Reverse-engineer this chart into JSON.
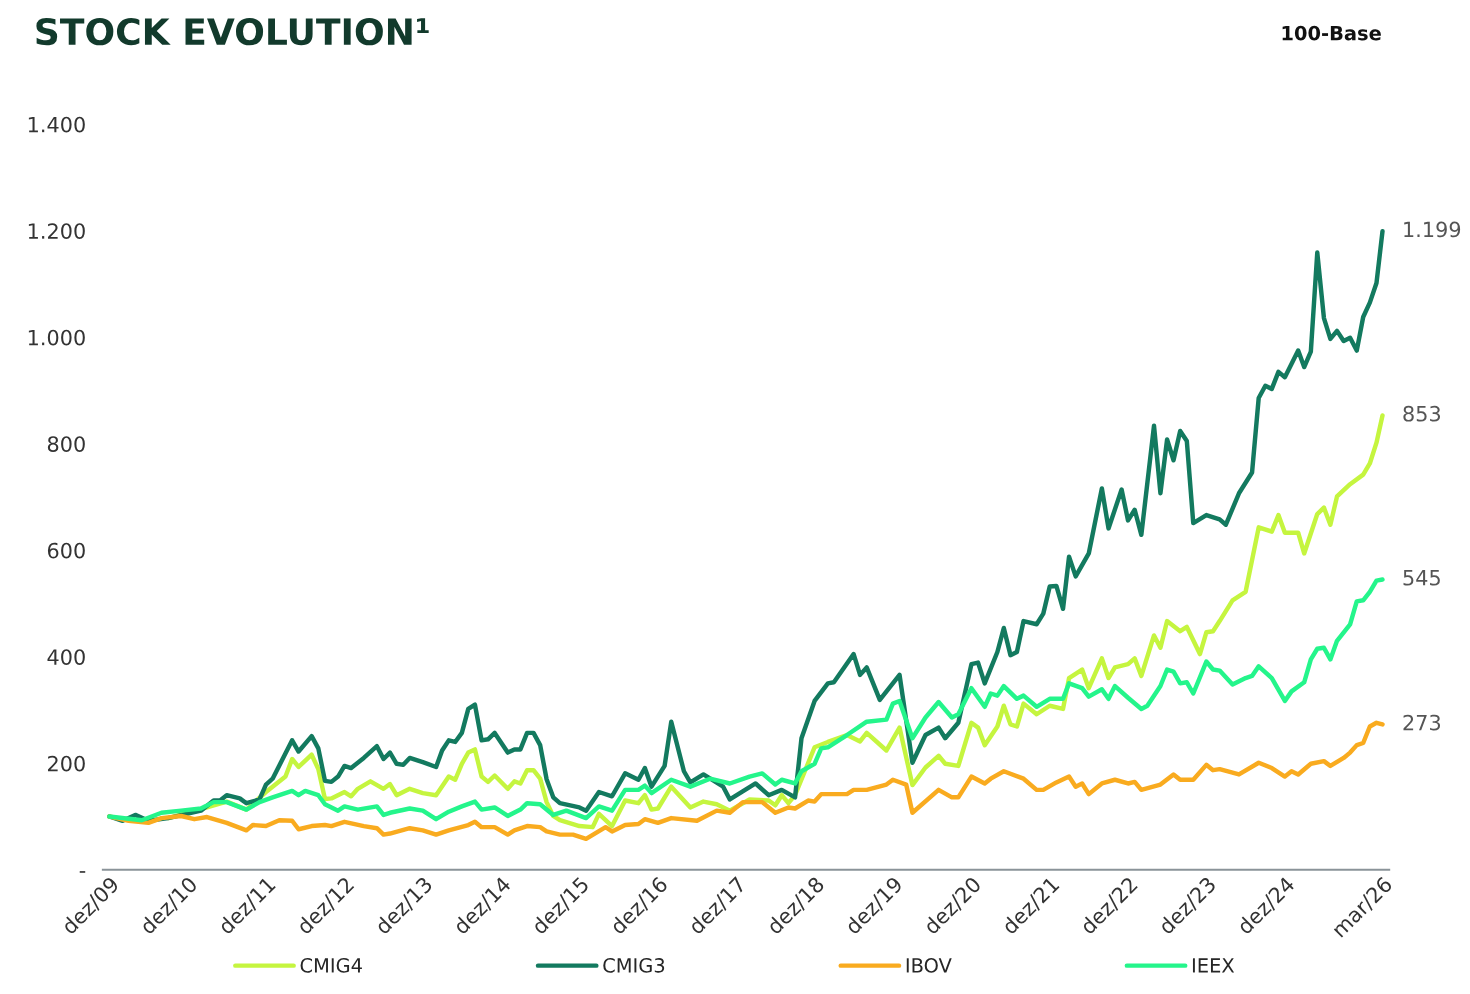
{
  "chart_data": {
    "type": "line",
    "title": "STOCK EVOLUTION¹",
    "subtitle": "100-Base",
    "xlim": [
      "2009-11",
      "2026-04"
    ],
    "xticks": [
      {
        "value": "2009-12",
        "label": "dez/09"
      },
      {
        "value": "2010-12",
        "label": "dez/10"
      },
      {
        "value": "2011-12",
        "label": "dez/11"
      },
      {
        "value": "2012-12",
        "label": "dez/12"
      },
      {
        "value": "2013-12",
        "label": "dez/13"
      },
      {
        "value": "2014-12",
        "label": "dez/14"
      },
      {
        "value": "2015-12",
        "label": "dez/15"
      },
      {
        "value": "2016-12",
        "label": "dez/16"
      },
      {
        "value": "2017-12",
        "label": "dez/17"
      },
      {
        "value": "2018-12",
        "label": "dez/18"
      },
      {
        "value": "2019-12",
        "label": "dez/19"
      },
      {
        "value": "2020-12",
        "label": "dez/20"
      },
      {
        "value": "2021-12",
        "label": "dez/21"
      },
      {
        "value": "2022-12",
        "label": "dez/22"
      },
      {
        "value": "2023-12",
        "label": "dez/23"
      },
      {
        "value": "2024-12",
        "label": "dez/24"
      },
      {
        "value": "2026-03",
        "label": "mar/26"
      }
    ],
    "ylim": [
      0,
      1400
    ],
    "yticks": [
      {
        "value": 0,
        "label": "-"
      },
      200,
      400,
      600,
      800,
      {
        "value": 1000,
        "label": "1.000"
      },
      {
        "value": 1200,
        "label": "1.200"
      },
      {
        "value": 1400,
        "label": "1.400"
      }
    ],
    "grid": false,
    "legend": "bottom",
    "marker": "none",
    "line_style": "solid",
    "annotations": [
      {
        "text": "1.199",
        "x": "2026-03",
        "y": 1199
      },
      {
        "text": "853",
        "x": "2026-03",
        "y": 853
      },
      {
        "text": "545",
        "x": "2026-03",
        "y": 545
      },
      {
        "text": "273",
        "x": "2026-03",
        "y": 273
      }
    ],
    "series": [
      {
        "name": "CMIG4",
        "color": "#c5f53f",
        "x": [
          "2010-09",
          "2011-03",
          "2011-06",
          "2011-09",
          "2011-12",
          "2012-03",
          "2012-04",
          "2012-05",
          "2012-07",
          "2012-08",
          "2012-09",
          "2012-10",
          "2012-12",
          "2013-01",
          "2013-02",
          "2013-04",
          "2013-06",
          "2013-07",
          "2013-08",
          "2013-10",
          "2013-12",
          "2014-02",
          "2014-04",
          "2014-05",
          "2014-06",
          "2014-07",
          "2014-08",
          "2014-09",
          "2014-10",
          "2014-11",
          "2015-01",
          "2015-02",
          "2015-03",
          "2015-04",
          "2015-05",
          "2015-06",
          "2015-07",
          "2015-08",
          "2015-09",
          "2015-12",
          "2016-02",
          "2016-03",
          "2016-05",
          "2016-07",
          "2016-09",
          "2016-10",
          "2016-11",
          "2016-12",
          "2017-02",
          "2017-05",
          "2017-07",
          "2017-09",
          "2017-11",
          "2018-02",
          "2018-05",
          "2018-06",
          "2018-07",
          "2018-08",
          "2018-09",
          "2018-12",
          "2019-02",
          "2019-05",
          "2019-07",
          "2019-08",
          "2019-11",
          "2020-01",
          "2020-03",
          "2020-05",
          "2020-07",
          "2020-08",
          "2020-10",
          "2020-12",
          "2021-01",
          "2021-02",
          "2021-04",
          "2021-05",
          "2021-06",
          "2021-07",
          "2021-08",
          "2021-10",
          "2021-12",
          "2022-02",
          "2022-03",
          "2022-05",
          "2022-06",
          "2022-08",
          "2022-09",
          "2022-10",
          "2022-12",
          "2023-01",
          "2023-02",
          "2023-04",
          "2023-05",
          "2023-06",
          "2023-08",
          "2023-09",
          "2023-11",
          "2023-12",
          "2024-01",
          "2024-02",
          "2024-04",
          "2024-06",
          "2024-08",
          "2024-10",
          "2024-11",
          "2024-12",
          "2025-02",
          "2025-03",
          "2025-05",
          "2025-06",
          "2025-07",
          "2025-08",
          "2025-10",
          "2025-12",
          "2026-01",
          "2026-02",
          "2026-03"
        ],
        "values": [
          97,
          117,
          128,
          113,
          146,
          175,
          208,
          193,
          216,
          189,
          133,
          134,
          146,
          138,
          152,
          166,
          152,
          161,
          140,
          152,
          144,
          140,
          175,
          169,
          199,
          220,
          226,
          175,
          165,
          177,
          152,
          166,
          162,
          187,
          187,
          171,
          127,
          101,
          93,
          82,
          80,
          105,
          82,
          130,
          125,
          140,
          113,
          115,
          156,
          117,
          128,
          123,
          111,
          132,
          130,
          121,
          140,
          125,
          140,
          230,
          240,
          253,
          241,
          257,
          224,
          267,
          159,
          192,
          214,
          199,
          195,
          276,
          267,
          234,
          269,
          308,
          273,
          269,
          312,
          292,
          308,
          302,
          360,
          376,
          341,
          397,
          360,
          380,
          386,
          397,
          364,
          440,
          417,
          467,
          448,
          456,
          405,
          446,
          448,
          467,
          506,
          522,
          643,
          635,
          666,
          633,
          633,
          594,
          668,
          680,
          648,
          701,
          724,
          742,
          763,
          802,
          853
        ]
      },
      {
        "name": "CMIG3",
        "color": "#137a5f",
        "x": [
          "2009-12",
          "2010-02",
          "2010-04",
          "2010-06",
          "2010-09",
          "2011-02",
          "2011-04",
          "2011-05",
          "2011-06",
          "2011-08",
          "2011-09",
          "2011-11",
          "2011-12",
          "2012-01",
          "2012-04",
          "2012-05",
          "2012-07",
          "2012-08",
          "2012-09",
          "2012-10",
          "2012-11",
          "2012-12",
          "2013-01",
          "2013-03",
          "2013-05",
          "2013-06",
          "2013-07",
          "2013-08",
          "2013-09",
          "2013-10",
          "2013-12",
          "2014-02",
          "2014-03",
          "2014-04",
          "2014-05",
          "2014-06",
          "2014-07",
          "2014-08",
          "2014-09",
          "2014-10",
          "2014-11",
          "2015-01",
          "2015-02",
          "2015-03",
          "2015-04",
          "2015-05",
          "2015-06",
          "2015-07",
          "2015-08",
          "2015-09",
          "2015-12",
          "2016-01",
          "2016-03",
          "2016-05",
          "2016-07",
          "2016-09",
          "2016-10",
          "2016-11",
          "2017-01",
          "2017-02",
          "2017-04",
          "2017-05",
          "2017-07",
          "2017-10",
          "2017-11",
          "2018-03",
          "2018-05",
          "2018-07",
          "2018-09",
          "2018-10",
          "2018-12",
          "2019-02",
          "2019-03",
          "2019-06",
          "2019-07",
          "2019-08",
          "2019-10",
          "2020-01",
          "2020-03",
          "2020-05",
          "2020-07",
          "2020-08",
          "2020-10",
          "2020-12",
          "2021-01",
          "2021-02",
          "2021-04",
          "2021-05",
          "2021-06",
          "2021-07",
          "2021-08",
          "2021-10",
          "2021-11",
          "2021-12",
          "2022-01",
          "2022-02",
          "2022-03",
          "2022-04",
          "2022-06",
          "2022-08",
          "2022-09",
          "2022-11",
          "2022-12",
          "2023-01",
          "2023-02",
          "2023-04",
          "2023-05",
          "2023-06",
          "2023-07",
          "2023-08",
          "2023-09",
          "2023-10",
          "2023-12",
          "2024-02",
          "2024-03",
          "2024-05",
          "2024-07",
          "2024-08",
          "2024-09",
          "2024-10",
          "2024-11",
          "2024-12",
          "2025-02",
          "2025-03",
          "2025-04",
          "2025-05",
          "2025-06",
          "2025-07",
          "2025-08",
          "2025-09",
          "2025-10",
          "2025-11",
          "2025-12",
          "2026-01",
          "2026-02",
          "2026-03"
        ],
        "values": [
          100,
          92,
          103,
          92,
          97,
          111,
          130,
          130,
          140,
          134,
          125,
          132,
          160,
          171,
          243,
          222,
          251,
          228,
          167,
          165,
          175,
          195,
          191,
          210,
          232,
          208,
          220,
          199,
          197,
          210,
          202,
          193,
          224,
          243,
          240,
          257,
          302,
          310,
          243,
          245,
          257,
          220,
          226,
          226,
          257,
          257,
          234,
          170,
          136,
          125,
          117,
          111,
          146,
          138,
          181,
          169,
          191,
          156,
          195,
          278,
          185,
          164,
          179,
          156,
          132,
          162,
          140,
          150,
          136,
          247,
          317,
          350,
          352,
          405,
          366,
          380,
          319,
          366,
          201,
          253,
          267,
          247,
          276,
          386,
          389,
          350,
          409,
          454,
          403,
          409,
          467,
          461,
          481,
          532,
          533,
          490,
          588,
          551,
          594,
          716,
          641,
          714,
          656,
          676,
          629,
          834,
          707,
          808,
          769,
          824,
          805,
          651,
          666,
          658,
          648,
          707,
          746,
          886,
          909,
          903,
          935,
          925,
          975,
          944,
          973,
          1159,
          1036,
          997,
          1012,
          993,
          999,
          975,
          1038,
          1065,
          1102,
          1199
        ]
      },
      {
        "name": "IBOV",
        "color": "#f9ab1f",
        "x": [
          "2009-12",
          "2010-03",
          "2010-06",
          "2010-08",
          "2010-11",
          "2011-01",
          "2011-03",
          "2011-06",
          "2011-09",
          "2011-10",
          "2011-12",
          "2012-02",
          "2012-04",
          "2012-05",
          "2012-07",
          "2012-09",
          "2012-10",
          "2012-12",
          "2013-03",
          "2013-05",
          "2013-06",
          "2013-07",
          "2013-10",
          "2013-12",
          "2014-02",
          "2014-04",
          "2014-07",
          "2014-08",
          "2014-09",
          "2014-11",
          "2015-01",
          "2015-02",
          "2015-04",
          "2015-06",
          "2015-07",
          "2015-09",
          "2015-11",
          "2016-01",
          "2016-04",
          "2016-05",
          "2016-07",
          "2016-09",
          "2016-10",
          "2016-12",
          "2017-02",
          "2017-06",
          "2017-09",
          "2017-11",
          "2018-01",
          "2018-04",
          "2018-06",
          "2018-08",
          "2018-09",
          "2018-11",
          "2018-12",
          "2019-01",
          "2019-05",
          "2019-06",
          "2019-08",
          "2019-11",
          "2019-12",
          "2020-02",
          "2020-03",
          "2020-07",
          "2020-09",
          "2020-10",
          "2020-12",
          "2021-02",
          "2021-03",
          "2021-05",
          "2021-08",
          "2021-10",
          "2021-11",
          "2022-01",
          "2022-03",
          "2022-04",
          "2022-05",
          "2022-06",
          "2022-08",
          "2022-10",
          "2022-12",
          "2023-01",
          "2023-02",
          "2023-05",
          "2023-07",
          "2023-08",
          "2023-10",
          "2023-12",
          "2024-01",
          "2024-02",
          "2024-05",
          "2024-08",
          "2024-10",
          "2024-12",
          "2025-01",
          "2025-02",
          "2025-04",
          "2025-06",
          "2025-07",
          "2025-09",
          "2025-10",
          "2025-11",
          "2025-12",
          "2026-01",
          "2026-02",
          "2026-03"
        ],
        "values": [
          100,
          92,
          88,
          97,
          101,
          95,
          99,
          88,
          74,
          84,
          82,
          93,
          92,
          76,
          82,
          84,
          82,
          90,
          82,
          78,
          66,
          68,
          78,
          74,
          66,
          74,
          84,
          90,
          80,
          80,
          66,
          74,
          82,
          80,
          72,
          66,
          66,
          58,
          80,
          72,
          84,
          86,
          95,
          88,
          97,
          92,
          111,
          107,
          127,
          127,
          107,
          117,
          115,
          130,
          128,
          142,
          142,
          150,
          150,
          160,
          169,
          160,
          107,
          150,
          136,
          136,
          175,
          162,
          171,
          185,
          171,
          150,
          150,
          164,
          175,
          156,
          162,
          142,
          162,
          169,
          162,
          165,
          150,
          160,
          179,
          169,
          169,
          197,
          187,
          189,
          179,
          201,
          191,
          175,
          185,
          179,
          199,
          204,
          195,
          210,
          220,
          234,
          238,
          269,
          276,
          273
        ]
      },
      {
        "name": "IEEX",
        "color": "#24f58b",
        "x": [
          "2009-12",
          "2010-05",
          "2010-08",
          "2010-11",
          "2011-02",
          "2011-04",
          "2011-06",
          "2011-09",
          "2011-11",
          "2012-01",
          "2012-04",
          "2012-05",
          "2012-06",
          "2012-08",
          "2012-09",
          "2012-11",
          "2012-12",
          "2013-02",
          "2013-05",
          "2013-06",
          "2013-07",
          "2013-10",
          "2013-12",
          "2014-02",
          "2014-04",
          "2014-06",
          "2014-08",
          "2014-09",
          "2014-11",
          "2015-01",
          "2015-03",
          "2015-04",
          "2015-06",
          "2015-08",
          "2015-10",
          "2016-01",
          "2016-03",
          "2016-05",
          "2016-07",
          "2016-09",
          "2016-10",
          "2016-11",
          "2017-02",
          "2017-05",
          "2017-08",
          "2017-11",
          "2018-02",
          "2018-04",
          "2018-06",
          "2018-07",
          "2018-09",
          "2018-10",
          "2018-12",
          "2019-01",
          "2019-02",
          "2019-05",
          "2019-08",
          "2019-11",
          "2019-12",
          "2020-01",
          "2020-03",
          "2020-05",
          "2020-07",
          "2020-09",
          "2020-10",
          "2020-12",
          "2021-02",
          "2021-03",
          "2021-04",
          "2021-05",
          "2021-07",
          "2021-08",
          "2021-10",
          "2021-12",
          "2022-02",
          "2022-03",
          "2022-05",
          "2022-06",
          "2022-08",
          "2022-09",
          "2022-10",
          "2022-12",
          "2023-02",
          "2023-03",
          "2023-05",
          "2023-06",
          "2023-07",
          "2023-08",
          "2023-09",
          "2023-10",
          "2023-12",
          "2024-01",
          "2024-02",
          "2024-04",
          "2024-06",
          "2024-07",
          "2024-08",
          "2024-10",
          "2024-12",
          "2025-01",
          "2025-03",
          "2025-04",
          "2025-05",
          "2025-06",
          "2025-07",
          "2025-08",
          "2025-10",
          "2025-11",
          "2025-12",
          "2026-01",
          "2026-02",
          "2026-03"
        ],
        "values": [
          100,
          93,
          107,
          111,
          115,
          127,
          127,
          113,
          127,
          136,
          148,
          140,
          148,
          140,
          123,
          111,
          119,
          113,
          119,
          103,
          107,
          115,
          111,
          95,
          109,
          119,
          128,
          113,
          117,
          101,
          113,
          125,
          123,
          103,
          111,
          97,
          119,
          111,
          150,
          150,
          158,
          144,
          169,
          156,
          171,
          162,
          175,
          181,
          160,
          169,
          162,
          185,
          199,
          228,
          230,
          253,
          278,
          282,
          312,
          317,
          247,
          286,
          315,
          286,
          292,
          341,
          306,
          331,
          327,
          345,
          321,
          327,
          306,
          321,
          321,
          350,
          341,
          325,
          339,
          321,
          345,
          323,
          302,
          308,
          345,
          376,
          372,
          350,
          352,
          331,
          391,
          376,
          374,
          348,
          360,
          364,
          382,
          360,
          317,
          335,
          352,
          395,
          415,
          417,
          395,
          430,
          461,
          504,
          506,
          522,
          543,
          545
        ]
      }
    ]
  }
}
